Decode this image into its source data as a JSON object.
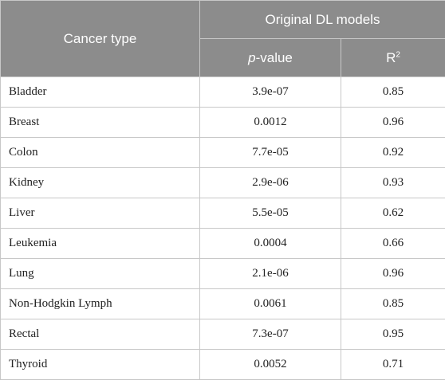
{
  "header": {
    "col1": "Cancer type",
    "group": "Original DL models",
    "pvalue_p": "p",
    "pvalue_rest": "-value",
    "r2_base": "R",
    "r2_sup": "2"
  },
  "rows": [
    {
      "type": "Bladder",
      "pvalue": "3.9e-07",
      "r2": "0.85"
    },
    {
      "type": "Breast",
      "pvalue": "0.0012",
      "r2": "0.96"
    },
    {
      "type": "Colon",
      "pvalue": "7.7e-05",
      "r2": "0.92"
    },
    {
      "type": "Kidney",
      "pvalue": "2.9e-06",
      "r2": "0.93"
    },
    {
      "type": "Liver",
      "pvalue": "5.5e-05",
      "r2": "0.62"
    },
    {
      "type": "Leukemia",
      "pvalue": "0.0004",
      "r2": "0.66"
    },
    {
      "type": "Lung",
      "pvalue": "2.1e-06",
      "r2": "0.96"
    },
    {
      "type": "Non-Hodgkin Lymph",
      "pvalue": "0.0061",
      "r2": "0.85"
    },
    {
      "type": "Rectal",
      "pvalue": "7.3e-07",
      "r2": "0.95"
    },
    {
      "type": "Thyroid",
      "pvalue": "0.0052",
      "r2": "0.71"
    }
  ]
}
